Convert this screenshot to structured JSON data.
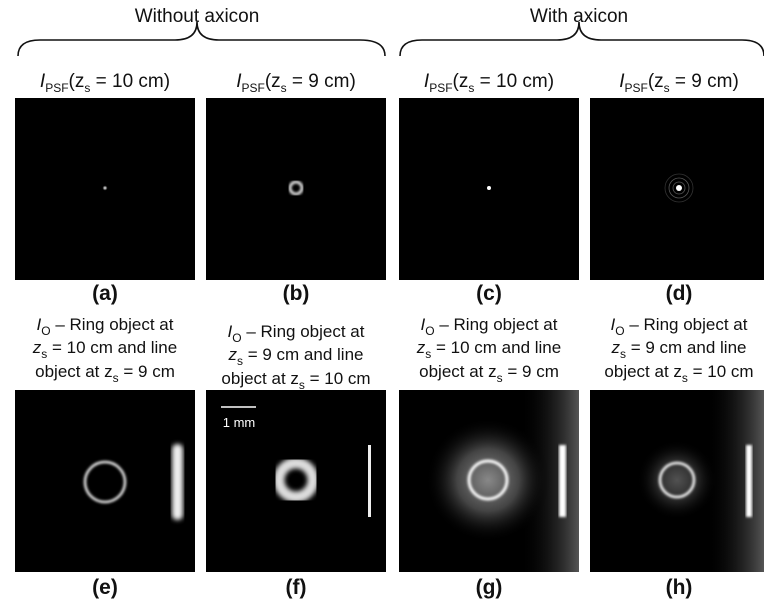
{
  "groups": [
    {
      "title": "Without axicon"
    },
    {
      "title": "With axicon"
    }
  ],
  "panels": [
    {
      "label": "(a)",
      "title": [
        "I",
        "PSF",
        "(z",
        "s",
        " = 10 cm)"
      ]
    },
    {
      "label": "(b)",
      "title": [
        "I",
        "PSF",
        "(z",
        "s",
        " = 9 cm)"
      ]
    },
    {
      "label": "(c)",
      "title": [
        "I",
        "PSF",
        "(z",
        "s",
        " = 10 cm)"
      ]
    },
    {
      "label": "(d)",
      "title": [
        "I",
        "PSF",
        "(z",
        "s",
        " = 9 cm)"
      ]
    }
  ],
  "objects": [
    {
      "label": "(e)",
      "caption": [
        [
          "I",
          "O",
          " – Ring object at"
        ],
        [
          "z",
          "s",
          " = 10 cm and line"
        ],
        [
          "object at z",
          "s",
          " = 9 cm"
        ]
      ]
    },
    {
      "label": "(f)",
      "caption": [
        [
          "I",
          "O",
          " – Ring object at"
        ],
        [
          "z",
          "s",
          " = 9 cm and line"
        ],
        [
          "object at z",
          "s",
          " = 10 cm"
        ]
      ]
    },
    {
      "label": "(g)",
      "caption": [
        [
          "I",
          "O",
          " – Ring object at"
        ],
        [
          "z",
          "s",
          " = 10 cm and line"
        ],
        [
          "object at z",
          "s",
          " = 9 cm"
        ]
      ]
    },
    {
      "label": "(h)",
      "caption": [
        [
          "I",
          "O",
          " – Ring object at"
        ],
        [
          "z",
          "s",
          " = 9 cm and line"
        ],
        [
          "object at z",
          "s",
          " = 10 cm"
        ]
      ]
    }
  ],
  "scale_bar": "1 mm"
}
